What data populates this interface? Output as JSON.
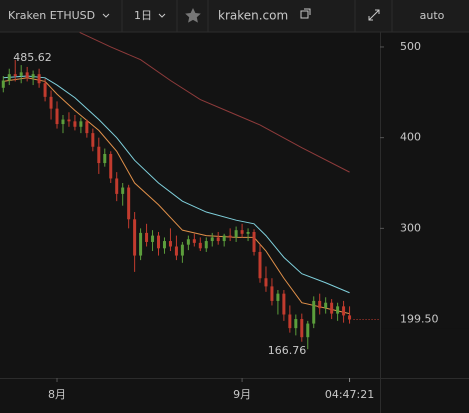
{
  "toolbar": {
    "symbol": "Kraken ETHUSD",
    "interval": "1日",
    "source": "kraken.com",
    "scale_mode": "auto"
  },
  "chart_data": {
    "type": "candlestick",
    "candles": {
      "x": [
        -9,
        -8,
        -7,
        -6,
        -5,
        -4,
        -3,
        -2,
        -1,
        0,
        1,
        2,
        3,
        4,
        5,
        6,
        7,
        8,
        9,
        10,
        11,
        12,
        13,
        14,
        15,
        16,
        17,
        18,
        19,
        20,
        21,
        22,
        23,
        24,
        25,
        26,
        27,
        28,
        29,
        30,
        31,
        32,
        33,
        34,
        35,
        36,
        37,
        38,
        39,
        40,
        41,
        42,
        43,
        44,
        45,
        46,
        47,
        48,
        49
      ],
      "open": [
        455,
        463,
        470,
        468,
        472,
        466,
        470,
        460,
        445,
        432,
        415,
        420,
        418,
        412,
        418,
        405,
        390,
        372,
        382,
        355,
        338,
        345,
        310,
        270,
        295,
        285,
        292,
        278,
        286,
        280,
        270,
        282,
        288,
        284,
        278,
        286,
        290,
        286,
        292,
        290,
        298,
        294,
        296,
        274,
        245,
        236,
        220,
        228,
        205,
        190,
        200,
        180,
        195,
        220,
        212,
        218,
        206,
        214,
        204
      ],
      "high": [
        468,
        476,
        485.62,
        480,
        478,
        474,
        476,
        465,
        452,
        440,
        425,
        428,
        425,
        422,
        420,
        410,
        400,
        388,
        385,
        362,
        350,
        348,
        318,
        300,
        305,
        298,
        296,
        290,
        300,
        292,
        285,
        292,
        294,
        290,
        290,
        295,
        296,
        294,
        300,
        302,
        305,
        300,
        299,
        282,
        258,
        245,
        232,
        232,
        215,
        205,
        206,
        198,
        225,
        228,
        224,
        222,
        218,
        220,
        214
      ],
      "low": [
        450,
        458,
        462,
        460,
        462,
        458,
        455,
        440,
        420,
        410,
        405,
        412,
        408,
        405,
        400,
        385,
        360,
        368,
        350,
        330,
        325,
        300,
        252,
        265,
        280,
        275,
        270,
        272,
        275,
        265,
        262,
        276,
        280,
        275,
        274,
        280,
        282,
        280,
        286,
        285,
        290,
        286,
        270,
        240,
        230,
        215,
        205,
        198,
        185,
        182,
        175,
        166.76,
        190,
        205,
        206,
        200,
        198,
        196,
        195
      ],
      "close": [
        463,
        470,
        468,
        472,
        466,
        470,
        460,
        445,
        432,
        415,
        420,
        418,
        412,
        418,
        405,
        390,
        372,
        382,
        355,
        338,
        345,
        310,
        270,
        295,
        285,
        292,
        278,
        286,
        280,
        270,
        282,
        288,
        284,
        278,
        286,
        290,
        286,
        292,
        290,
        298,
        294,
        296,
        274,
        245,
        236,
        220,
        228,
        205,
        190,
        200,
        180,
        195,
        220,
        212,
        218,
        206,
        214,
        204,
        199.5
      ],
      "up_color": "#5c9e3c",
      "down_color": "#c23b2e"
    },
    "series": [
      {
        "color": "#7fd0dc",
        "x": [
          -9,
          -5,
          -2,
          0,
          3,
          7,
          10,
          13,
          17,
          21,
          25,
          30,
          33,
          35,
          38,
          41,
          45,
          49
        ],
        "values": [
          466,
          468,
          466,
          458,
          444,
          420,
          400,
          375,
          350,
          330,
          318,
          309,
          305,
          292,
          268,
          250,
          240,
          229
        ]
      },
      {
        "color": "#e0904a",
        "x": [
          -9,
          -5,
          -2,
          0,
          3,
          7,
          10,
          13,
          17,
          21,
          25,
          30,
          33,
          35,
          38,
          41,
          45,
          49
        ],
        "values": [
          462,
          466,
          462,
          448,
          430,
          408,
          385,
          350,
          326,
          298,
          292,
          290,
          290,
          275,
          245,
          218,
          212,
          206
        ]
      },
      {
        "color": "#8e3b3b",
        "x": [
          3.8,
          9,
          14,
          19,
          24,
          29,
          34,
          41,
          49
        ],
        "values": [
          516,
          500,
          486,
          463,
          442,
          428,
          414,
          389,
          362
        ]
      }
    ],
    "high_annotation": 485.62,
    "high_annotation_x": -7,
    "low_annotation": 166.76,
    "low_annotation_x": 42,
    "last_price": {
      "value": 199.5,
      "label": "199.50"
    },
    "time_label": "04:47:21",
    "time_label_x": 49,
    "xlim": [
      -9.55,
      54.1
    ],
    "ylim": [
      135,
      516.5
    ],
    "xticks": [
      {
        "value": 0,
        "label": "8月"
      },
      {
        "value": 31,
        "label": "9月"
      }
    ],
    "yticks": [
      300,
      400,
      500
    ]
  }
}
